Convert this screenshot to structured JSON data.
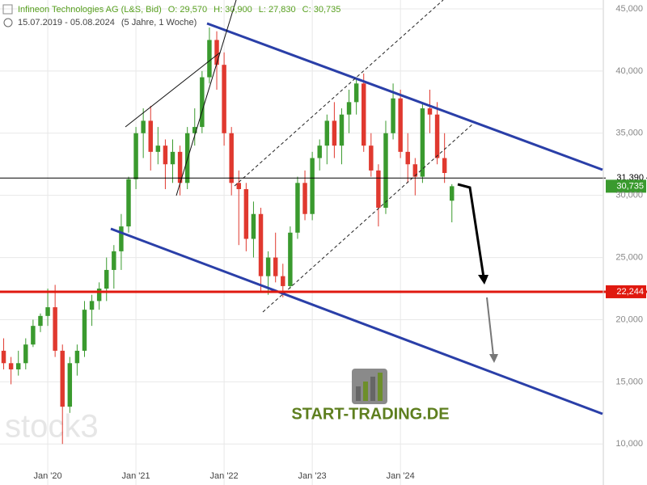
{
  "header": {
    "instrument": "Infineon Technologies AG (L&S, Bid)",
    "open": "O: 29,570",
    "high": "H: 30,900",
    "low": "L: 27,830",
    "close": "C: 30,735",
    "range": "15.07.2019 - 05.08.2024",
    "period": "(5 Jahre, 1 Woche)"
  },
  "watermarks": {
    "left": "stock3",
    "center": "START-TRADING.DE"
  },
  "chart_data": {
    "type": "candlestick",
    "x": [
      "2019-07",
      "2019-08",
      "2019-09",
      "2019-10",
      "2019-11",
      "2019-12",
      "2020-01",
      "2020-02",
      "2020-03",
      "2020-04",
      "2020-05",
      "2020-06",
      "2020-07",
      "2020-08",
      "2020-09",
      "2020-10",
      "2020-11",
      "2020-12",
      "2021-01",
      "2021-02",
      "2021-03",
      "2021-04",
      "2021-05",
      "2021-06",
      "2021-07",
      "2021-08",
      "2021-09",
      "2021-10",
      "2021-11",
      "2021-12",
      "2022-01",
      "2022-02",
      "2022-03",
      "2022-04",
      "2022-05",
      "2022-06",
      "2022-07",
      "2022-08",
      "2022-09",
      "2022-10",
      "2022-11",
      "2022-12",
      "2023-01",
      "2023-02",
      "2023-03",
      "2023-04",
      "2023-05",
      "2023-06",
      "2023-07",
      "2023-08",
      "2023-09",
      "2023-10",
      "2023-11",
      "2023-12",
      "2024-01",
      "2024-02",
      "2024-03",
      "2024-04",
      "2024-05",
      "2024-06",
      "2024-07",
      "2024-08"
    ],
    "open": [
      17500,
      16500,
      16000,
      16500,
      18000,
      19500,
      20300,
      21000,
      17500,
      13000,
      16500,
      17500,
      20800,
      21500,
      22500,
      24000,
      25500,
      27500,
      31300,
      35000,
      36000,
      33500,
      34000,
      32500,
      33500,
      31000,
      35000,
      35500,
      39500,
      42500,
      40500,
      35000,
      31000,
      30500,
      26500,
      28500,
      23500,
      25000,
      23500,
      22700,
      27000,
      31000,
      28500,
      33000,
      34000,
      36000,
      34000,
      36500,
      37500,
      39000,
      34000,
      32000,
      29000,
      35000,
      37800,
      33500,
      32500,
      31500,
      37000,
      36500,
      33000,
      29570
    ],
    "high": [
      18500,
      17000,
      17500,
      18500,
      20000,
      20500,
      22500,
      22800,
      18000,
      17000,
      18000,
      21500,
      22000,
      23000,
      25000,
      26000,
      28500,
      31500,
      35500,
      37000,
      37200,
      35500,
      34500,
      34500,
      34000,
      35500,
      37000,
      40000,
      43500,
      43200,
      41500,
      35500,
      32000,
      31000,
      29500,
      29000,
      25500,
      27000,
      24500,
      27500,
      31500,
      32000,
      33500,
      34500,
      36500,
      37500,
      37000,
      38500,
      39500,
      39800,
      35000,
      32500,
      36000,
      39000,
      38500,
      35000,
      33000,
      37500,
      38500,
      37500,
      35000,
      30900
    ],
    "low": [
      16000,
      14800,
      15500,
      16000,
      17800,
      19000,
      19500,
      17000,
      10000,
      12500,
      15500,
      17000,
      19500,
      20800,
      21500,
      22500,
      24000,
      27000,
      30500,
      33000,
      32000,
      32500,
      30500,
      31000,
      30000,
      30500,
      34000,
      35000,
      39000,
      38500,
      34000,
      30000,
      26000,
      25500,
      25000,
      22300,
      22000,
      23000,
      21800,
      22500,
      26500,
      28000,
      28000,
      32000,
      32500,
      33000,
      32500,
      35000,
      36500,
      33500,
      31500,
      27500,
      28500,
      34500,
      33000,
      31000,
      30000,
      31000,
      35000,
      32500,
      31000,
      27830
    ],
    "close": [
      16500,
      16000,
      16500,
      18000,
      19500,
      20300,
      21000,
      17500,
      13000,
      16500,
      17500,
      20800,
      21500,
      22500,
      24000,
      25500,
      27500,
      31300,
      35000,
      36000,
      33500,
      34000,
      32500,
      33500,
      31000,
      35000,
      35500,
      39500,
      42500,
      40500,
      35000,
      31000,
      30500,
      26500,
      28500,
      23500,
      25000,
      23500,
      22700,
      27000,
      31000,
      28500,
      33000,
      34000,
      36000,
      34000,
      36500,
      37500,
      39000,
      34000,
      32000,
      29000,
      35000,
      37800,
      33500,
      32500,
      31500,
      37000,
      36500,
      33000,
      31800,
      30735
    ],
    "up_color": "#3a9a2e",
    "down_color": "#e0392f",
    "xlim": [
      "2019-07",
      "2026-05"
    ],
    "xticks": [
      {
        "value": "2020-01",
        "label": "Jan '20"
      },
      {
        "value": "2021-01",
        "label": "Jan '21"
      },
      {
        "value": "2022-01",
        "label": "Jan '22"
      },
      {
        "value": "2023-01",
        "label": "Jan '23"
      },
      {
        "value": "2024-01",
        "label": "Jan '24"
      }
    ],
    "ylim": [
      6700,
      45715
    ],
    "yticks": [
      {
        "value": 10000,
        "label": "10,000"
      },
      {
        "value": 15000,
        "label": "15,000"
      },
      {
        "value": 20000,
        "label": "20,000"
      },
      {
        "value": 25000,
        "label": "25,000"
      },
      {
        "value": 30000,
        "label": "30,000"
      },
      {
        "value": 35000,
        "label": "35,000"
      },
      {
        "value": 40000,
        "label": "40,000"
      },
      {
        "value": 45000,
        "label": "45,000"
      }
    ],
    "grid": true,
    "levels": [
      {
        "value": 31390,
        "label": "31,390",
        "color": "#000000"
      },
      {
        "value": 22244,
        "label": "22,244",
        "color": "#e0190f"
      }
    ],
    "last_price": {
      "value": 30735,
      "label": "30,735",
      "color": "#3a9a2e"
    }
  }
}
